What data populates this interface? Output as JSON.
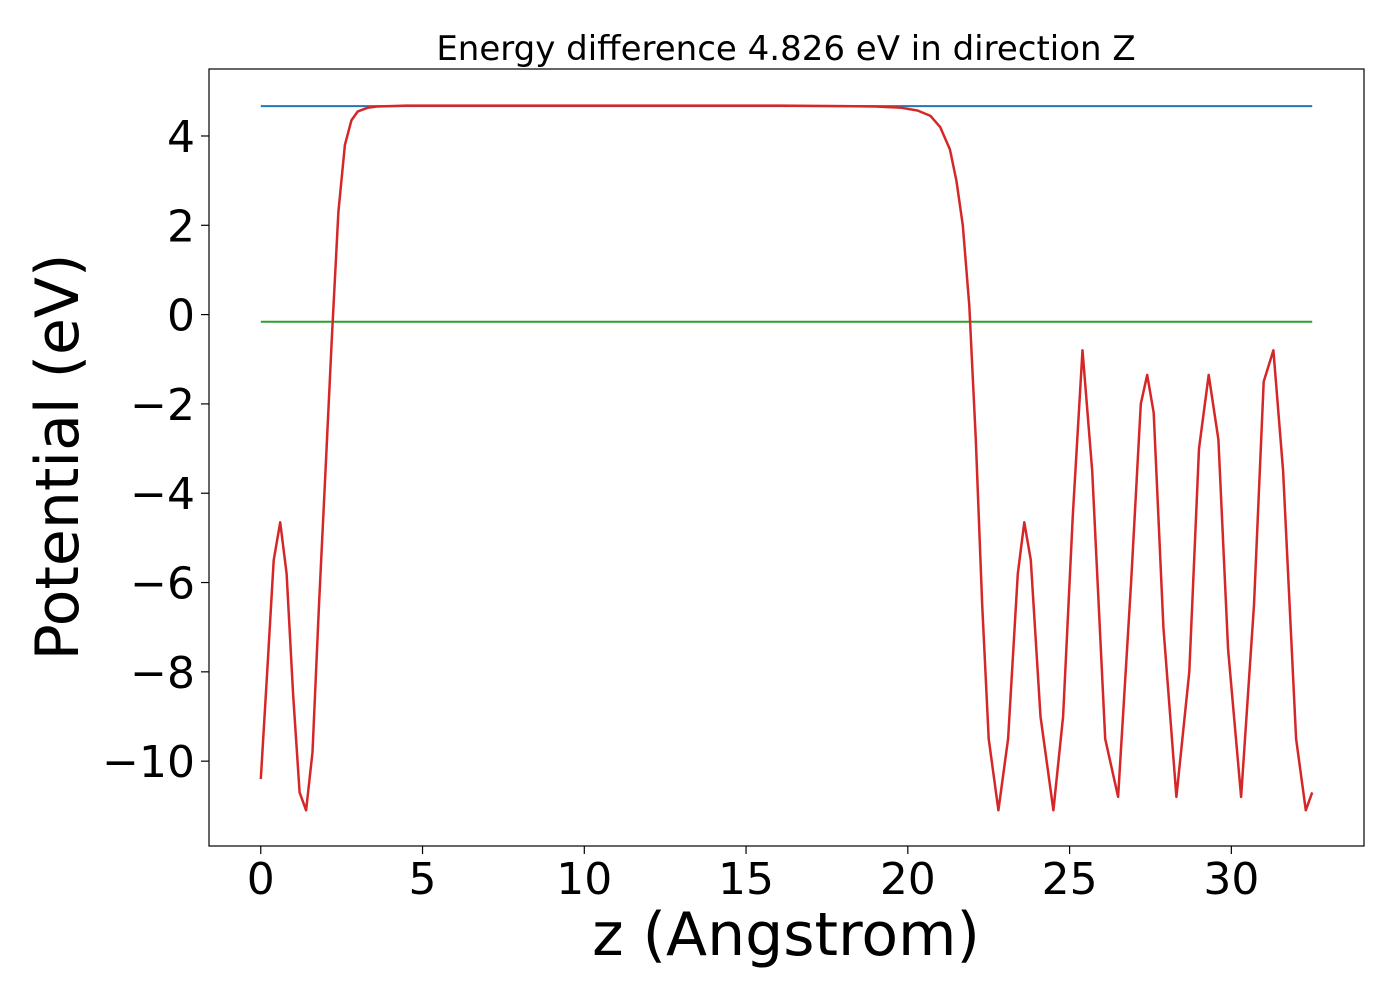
{
  "chart_data": {
    "type": "line",
    "title": "Energy difference 4.826 eV in direction Z",
    "xlabel": "z (Angstrom)",
    "ylabel": "Potential (eV)",
    "xlim": [
      -1.6,
      34.1
    ],
    "ylim": [
      -11.9,
      5.5
    ],
    "x_ticks": [
      0,
      5,
      10,
      15,
      20,
      25,
      30
    ],
    "x_tick_labels": [
      "0",
      "5",
      "10",
      "15",
      "20",
      "25",
      "30"
    ],
    "y_ticks": [
      4,
      2,
      0,
      -2,
      -4,
      -6,
      -8,
      -10
    ],
    "y_tick_labels": [
      "4",
      "2",
      "0",
      "−2",
      "−4",
      "−6",
      "−8",
      "−10"
    ],
    "grid": false,
    "series": [
      {
        "kind": "hline",
        "color": "#1f77b4",
        "x": [
          0,
          32.5
        ],
        "y": [
          4.67,
          4.67
        ]
      },
      {
        "kind": "hline",
        "color": "#2ca02c",
        "x": [
          0,
          32.5
        ],
        "y": [
          -0.16,
          -0.16
        ]
      },
      {
        "kind": "line",
        "color": "#d62728",
        "x": [
          0,
          0.2,
          0.4,
          0.6,
          0.8,
          1.0,
          1.2,
          1.4,
          1.6,
          1.8,
          2.0,
          2.2,
          2.4,
          2.6,
          2.8,
          3.0,
          3.3,
          3.6,
          4.0,
          4.5,
          5,
          6,
          8,
          10,
          12,
          14,
          16,
          18,
          19,
          19.8,
          20.3,
          20.7,
          21.0,
          21.3,
          21.5,
          21.7,
          21.9,
          22.1,
          22.3,
          22.5,
          22.8,
          23.1,
          23.4,
          23.6,
          23.8,
          24.1,
          24.5,
          24.8,
          25.1,
          25.4,
          25.7,
          26.1,
          26.5,
          26.9,
          27.2,
          27.4,
          27.6,
          27.9,
          28.3,
          28.7,
          29.0,
          29.3,
          29.6,
          29.9,
          30.3,
          30.7,
          31.0,
          31.3,
          31.6,
          32.0,
          32.3,
          32.5
        ],
        "y": [
          -10.4,
          -8.0,
          -5.5,
          -4.65,
          -5.8,
          -8.5,
          -10.7,
          -11.1,
          -9.8,
          -6.5,
          -3.5,
          -0.5,
          2.3,
          3.8,
          4.35,
          4.55,
          4.63,
          4.66,
          4.67,
          4.68,
          4.68,
          4.68,
          4.68,
          4.68,
          4.68,
          4.68,
          4.68,
          4.67,
          4.66,
          4.63,
          4.57,
          4.45,
          4.2,
          3.7,
          3.0,
          2.0,
          0.2,
          -2.8,
          -6.5,
          -9.5,
          -11.1,
          -9.5,
          -5.8,
          -4.65,
          -5.5,
          -9.0,
          -11.1,
          -9.0,
          -4.5,
          -0.8,
          -3.5,
          -9.5,
          -10.8,
          -6.0,
          -2.0,
          -1.35,
          -2.2,
          -7.0,
          -10.8,
          -8.0,
          -3.0,
          -1.35,
          -2.8,
          -7.5,
          -10.8,
          -6.5,
          -1.5,
          -0.8,
          -3.5,
          -9.5,
          -11.1,
          -10.7
        ]
      }
    ]
  }
}
